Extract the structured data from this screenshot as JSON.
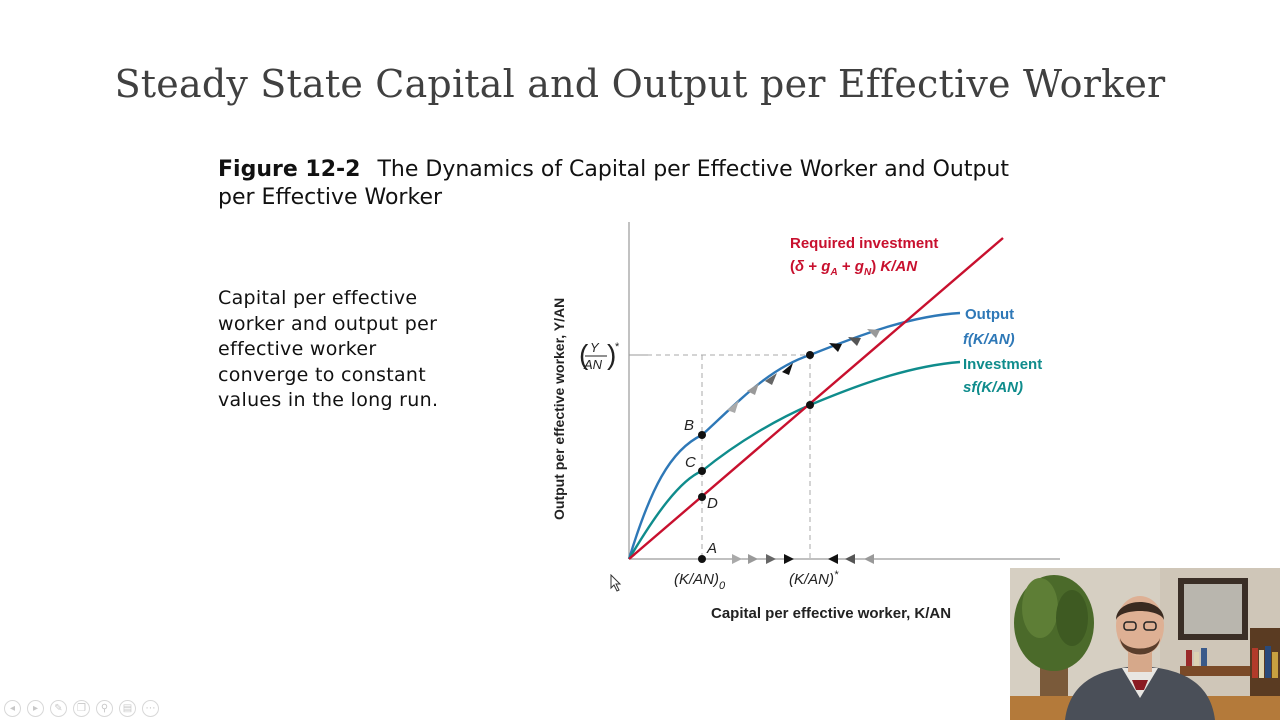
{
  "slide": {
    "title": "Steady State Capital and Output per Effective Worker"
  },
  "figure": {
    "number": "Figure 12-2",
    "caption": "The Dynamics of Capital per Effective Worker and Output per Effective Worker"
  },
  "bullet": {
    "text": "Capital per effective worker and output per effective worker converge to constant values in the long run."
  },
  "chart_data": {
    "type": "line",
    "xlabel": "Capital per effective worker, K/AN",
    "ylabel": "Output per effective worker, Y/AN",
    "x_ticks": [
      "(K/AN)0",
      "(K/AN)*"
    ],
    "y_ticks": [
      "(Y/AN)*"
    ],
    "series": [
      {
        "name": "Required investment",
        "label_line2": "(δ + gA + gN) K/AN",
        "color": "#c8102e"
      },
      {
        "name": "Output",
        "label_line2": "f(K/AN)",
        "color": "#2e78b7"
      },
      {
        "name": "Investment",
        "label_line2": "sf(K/AN)",
        "color": "#0f8c8c"
      }
    ],
    "points": [
      "A",
      "B",
      "C",
      "D"
    ]
  },
  "colors": {
    "required_investment": "#c8102e",
    "output": "#2e78b7",
    "investment": "#0f8c8c",
    "title": "#404040"
  },
  "toolbar": {
    "icons": [
      "prev-icon",
      "next-icon",
      "pen-icon",
      "copy-icon",
      "zoom-icon",
      "menu-icon",
      "more-icon"
    ]
  }
}
